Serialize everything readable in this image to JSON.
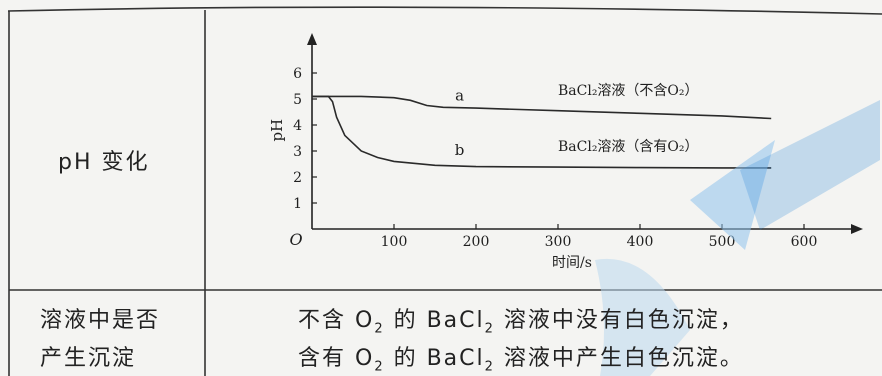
{
  "table": {
    "row1_label": "pH 变化",
    "row2_label_line1": "溶液中是否",
    "row2_label_line2": "产生沉淀",
    "row2_result_line1": {
      "pre": "不含 O",
      "sub": "2",
      "mid": " 的 BaCl",
      "sub2": "2",
      "post": " 溶液中没有白色沉淀，"
    },
    "row2_result_line2": {
      "pre": "含有 O",
      "sub": "2",
      "mid": " 的 BaCl",
      "sub2": "2",
      "post": " 溶液中产生白色沉淀。"
    }
  },
  "chart_data": {
    "type": "line",
    "xlabel": "时间/s",
    "ylabel": "pH",
    "origin_label": "O",
    "xlim": [
      0,
      650
    ],
    "ylim": [
      0,
      7
    ],
    "x_ticks": [
      100,
      200,
      300,
      400,
      500,
      600
    ],
    "y_ticks": [
      1,
      2,
      3,
      4,
      5,
      6
    ],
    "series": [
      {
        "name": "a",
        "legend": "BaCl₂溶液（不含O₂）",
        "x": [
          0,
          20,
          60,
          100,
          120,
          140,
          160,
          200,
          300,
          400,
          500,
          560
        ],
        "y": [
          5.1,
          5.1,
          5.1,
          5.05,
          4.95,
          4.75,
          4.68,
          4.65,
          4.55,
          4.45,
          4.35,
          4.25
        ]
      },
      {
        "name": "b",
        "legend": "BaCl₂溶液（含有O₂）",
        "x": [
          0,
          20,
          25,
          30,
          40,
          60,
          80,
          100,
          150,
          200,
          300,
          400,
          500,
          560
        ],
        "y": [
          5.1,
          5.1,
          4.9,
          4.3,
          3.6,
          3.0,
          2.75,
          2.6,
          2.45,
          2.4,
          2.38,
          2.36,
          2.35,
          2.35
        ]
      }
    ]
  }
}
